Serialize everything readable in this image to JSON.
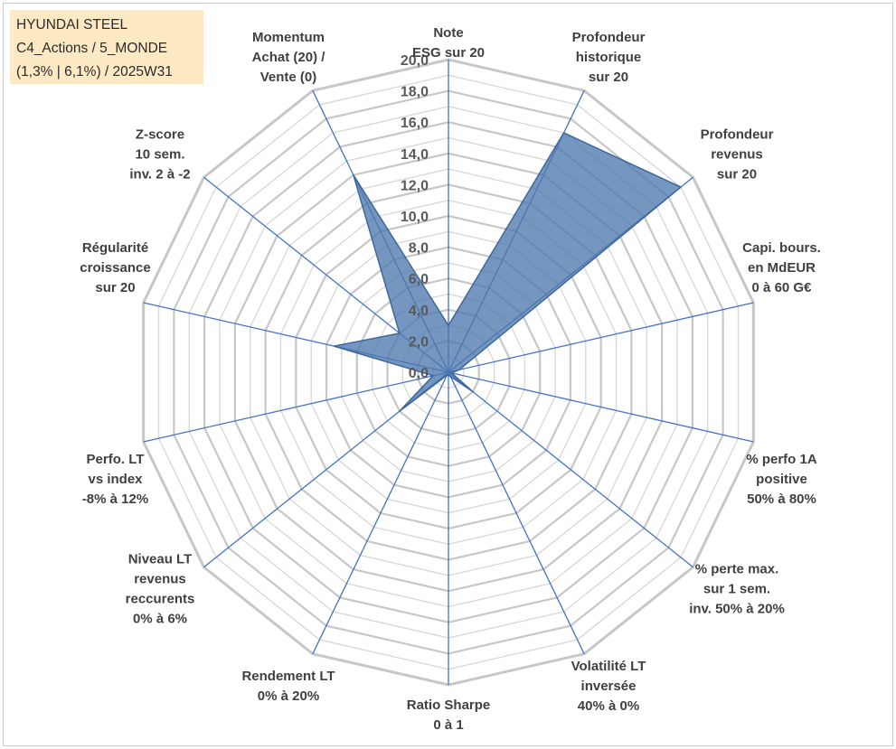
{
  "info_box": {
    "line1": "HYUNDAI STEEL",
    "line2": "C4_Actions / 5_MONDE",
    "line3": "(1,3% | 6,1%) / 2025W31"
  },
  "chart_data": {
    "type": "radar",
    "title": "",
    "rmin": 0,
    "rmax": 20,
    "tick_labels": [
      "0,0",
      "2,0",
      "4,0",
      "6,0",
      "8,0",
      "10,0",
      "12,0",
      "14,0",
      "16,0",
      "18,0",
      "20,0"
    ],
    "axes": [
      {
        "label": [
          "Note",
          "ESG sur 20"
        ],
        "value": 3.0
      },
      {
        "label": [
          "Profondeur",
          "historique",
          "sur 20"
        ],
        "value": 17.0
      },
      {
        "label": [
          "Profondeur",
          "revenus",
          "sur 20"
        ],
        "value": 19.0
      },
      {
        "label": [
          "Capi. bours.",
          "en MdEUR",
          "0 à 60 G€"
        ],
        "value": 0.7
      },
      {
        "label": [
          "% perfo 1A",
          "positive",
          "50% à 80%"
        ],
        "value": 0.2
      },
      {
        "label": [
          "% perte max.",
          "sur 1 sem.",
          "inv. 50% à 20%"
        ],
        "value": 2.0
      },
      {
        "label": [
          "Volatilité LT",
          "inversée",
          "40% à 0%"
        ],
        "value": 0.3
      },
      {
        "label": [
          "Ratio Sharpe",
          "0 à 1"
        ],
        "value": 0.2
      },
      {
        "label": [
          "Rendement LT",
          "0% à 20%"
        ],
        "value": 0.2
      },
      {
        "label": [
          "Niveau LT",
          "revenus",
          "reccurents",
          "0% à 6%"
        ],
        "value": 4.0
      },
      {
        "label": [
          "Perfo. LT",
          "vs index",
          "-8% à 12%"
        ],
        "value": 1.0
      },
      {
        "label": [
          "Régularité",
          "croissance",
          "sur 20"
        ],
        "value": 7.5
      },
      {
        "label": [
          "Z-score",
          "10 sem.",
          "inv. 2 à -2"
        ],
        "value": 4.0
      },
      {
        "label": [
          "Momentum",
          "Achat (20) /",
          "Vente (0)"
        ],
        "value": 14.0
      }
    ],
    "colors": {
      "fill": "#4d79ad",
      "stroke": "#3d67a0",
      "grid": "#c7c7c7",
      "grid_inner": "#d9d9d9",
      "spoke": "#4472c4",
      "background": "#ffffff"
    },
    "grid": true,
    "legend": "none"
  }
}
